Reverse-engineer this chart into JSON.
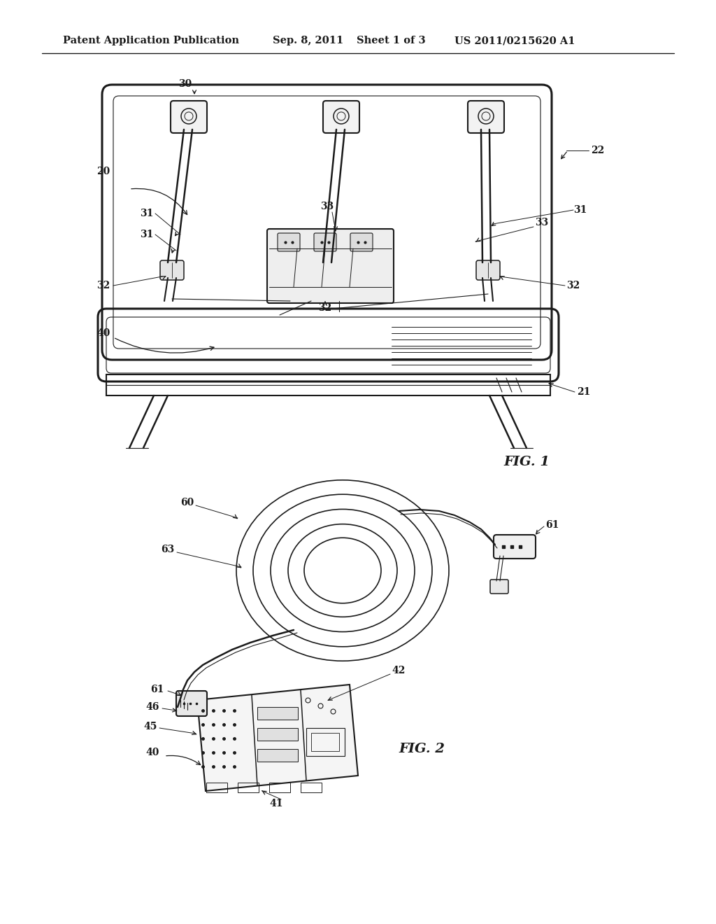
{
  "bg_color": "#ffffff",
  "line_color": "#1a1a1a",
  "header_text": "Patent Application Publication",
  "header_date": "Sep. 8, 2011",
  "header_sheet": "Sheet 1 of 3",
  "header_patent": "US 2011/0215620 A1",
  "fig1_label": "FIG. 1",
  "fig2_label": "FIG. 2",
  "lw_thin": 0.8,
  "lw_med": 1.5,
  "lw_thick": 2.2,
  "label_fs": 10
}
